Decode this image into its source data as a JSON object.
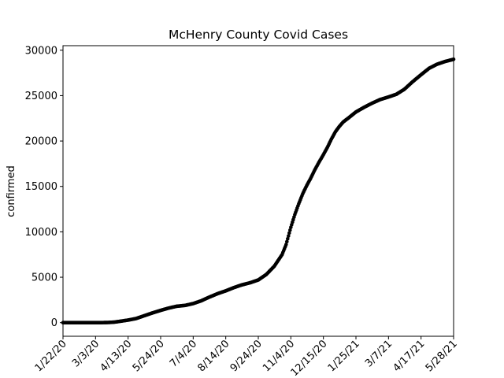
{
  "chart_data": {
    "type": "scatter",
    "title": "McHenry County Covid Cases",
    "xlabel": "",
    "ylabel": "confirmed",
    "x_type": "date",
    "xlim": [
      "2020-01-22",
      "2021-05-28"
    ],
    "ylim": [
      -1500,
      30500
    ],
    "y_ticks": [
      0,
      5000,
      10000,
      15000,
      20000,
      25000,
      30000
    ],
    "x_ticks": [
      {
        "date": "2020-01-22",
        "label": "1/22/20"
      },
      {
        "date": "2020-03-03",
        "label": "3/3/20"
      },
      {
        "date": "2020-04-13",
        "label": "4/13/20"
      },
      {
        "date": "2020-05-24",
        "label": "5/24/20"
      },
      {
        "date": "2020-07-04",
        "label": "7/4/20"
      },
      {
        "date": "2020-08-14",
        "label": "8/14/20"
      },
      {
        "date": "2020-09-24",
        "label": "9/24/20"
      },
      {
        "date": "2020-11-04",
        "label": "11/4/20"
      },
      {
        "date": "2020-12-15",
        "label": "12/15/20"
      },
      {
        "date": "2021-01-25",
        "label": "1/25/21"
      },
      {
        "date": "2021-03-07",
        "label": "3/7/21"
      },
      {
        "date": "2021-04-17",
        "label": "4/17/21"
      },
      {
        "date": "2021-05-28",
        "label": "5/28/21"
      }
    ],
    "grid": false,
    "marker_color": "#000000",
    "series": [
      {
        "points": [
          [
            "2020-01-22",
            0
          ],
          [
            "2020-03-10",
            0
          ],
          [
            "2020-03-20",
            20
          ],
          [
            "2020-03-27",
            60
          ],
          [
            "2020-04-03",
            150
          ],
          [
            "2020-04-13",
            280
          ],
          [
            "2020-04-23",
            450
          ],
          [
            "2020-05-03",
            750
          ],
          [
            "2020-05-13",
            1050
          ],
          [
            "2020-05-24",
            1350
          ],
          [
            "2020-06-03",
            1600
          ],
          [
            "2020-06-13",
            1800
          ],
          [
            "2020-06-24",
            1900
          ],
          [
            "2020-07-04",
            2100
          ],
          [
            "2020-07-14",
            2400
          ],
          [
            "2020-07-24",
            2800
          ],
          [
            "2020-08-04",
            3200
          ],
          [
            "2020-08-14",
            3500
          ],
          [
            "2020-08-24",
            3850
          ],
          [
            "2020-09-03",
            4150
          ],
          [
            "2020-09-14",
            4400
          ],
          [
            "2020-09-24",
            4700
          ],
          [
            "2020-10-04",
            5300
          ],
          [
            "2020-10-14",
            6200
          ],
          [
            "2020-10-24",
            7500
          ],
          [
            "2020-10-29",
            8600
          ],
          [
            "2020-11-04",
            10500
          ],
          [
            "2020-11-09",
            11900
          ],
          [
            "2020-11-14",
            13100
          ],
          [
            "2020-11-19",
            14200
          ],
          [
            "2020-11-24",
            15100
          ],
          [
            "2020-11-29",
            15900
          ],
          [
            "2020-12-04",
            16800
          ],
          [
            "2020-12-09",
            17600
          ],
          [
            "2020-12-15",
            18500
          ],
          [
            "2020-12-20",
            19300
          ],
          [
            "2020-12-25",
            20200
          ],
          [
            "2020-12-30",
            21000
          ],
          [
            "2021-01-04",
            21600
          ],
          [
            "2021-01-09",
            22100
          ],
          [
            "2021-01-15",
            22500
          ],
          [
            "2021-01-25",
            23200
          ],
          [
            "2021-02-04",
            23700
          ],
          [
            "2021-02-14",
            24150
          ],
          [
            "2021-02-24",
            24550
          ],
          [
            "2021-03-07",
            24850
          ],
          [
            "2021-03-17",
            25150
          ],
          [
            "2021-03-27",
            25700
          ],
          [
            "2021-04-06",
            26500
          ],
          [
            "2021-04-17",
            27300
          ],
          [
            "2021-04-27",
            28000
          ],
          [
            "2021-05-07",
            28450
          ],
          [
            "2021-05-17",
            28750
          ],
          [
            "2021-05-28",
            29000
          ]
        ]
      }
    ]
  }
}
